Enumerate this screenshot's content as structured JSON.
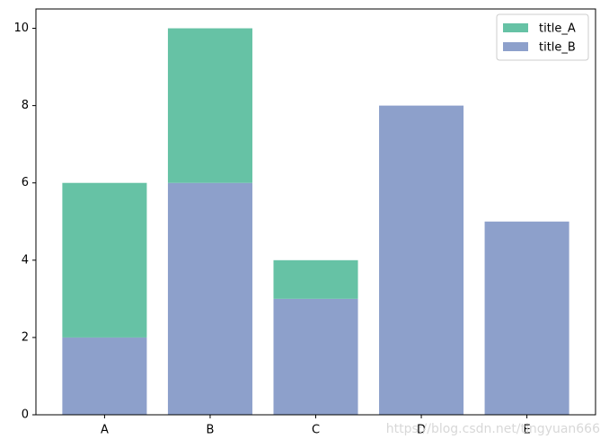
{
  "chart_data": {
    "type": "bar",
    "stacked": true,
    "categories": [
      "A",
      "B",
      "C",
      "D",
      "E"
    ],
    "series": [
      {
        "name": "title_A",
        "color": "#66c2a5",
        "values": [
          4,
          4,
          1,
          0,
          0
        ]
      },
      {
        "name": "title_B",
        "color": "#8da0cb",
        "values": [
          2,
          6,
          3,
          8,
          5
        ]
      }
    ],
    "ylim": [
      0,
      10.5
    ],
    "yticks": [
      0,
      2,
      4,
      6,
      8,
      10
    ],
    "legend": "upper-right",
    "watermark": "https://blog.csdn.net/tingyuan666"
  }
}
